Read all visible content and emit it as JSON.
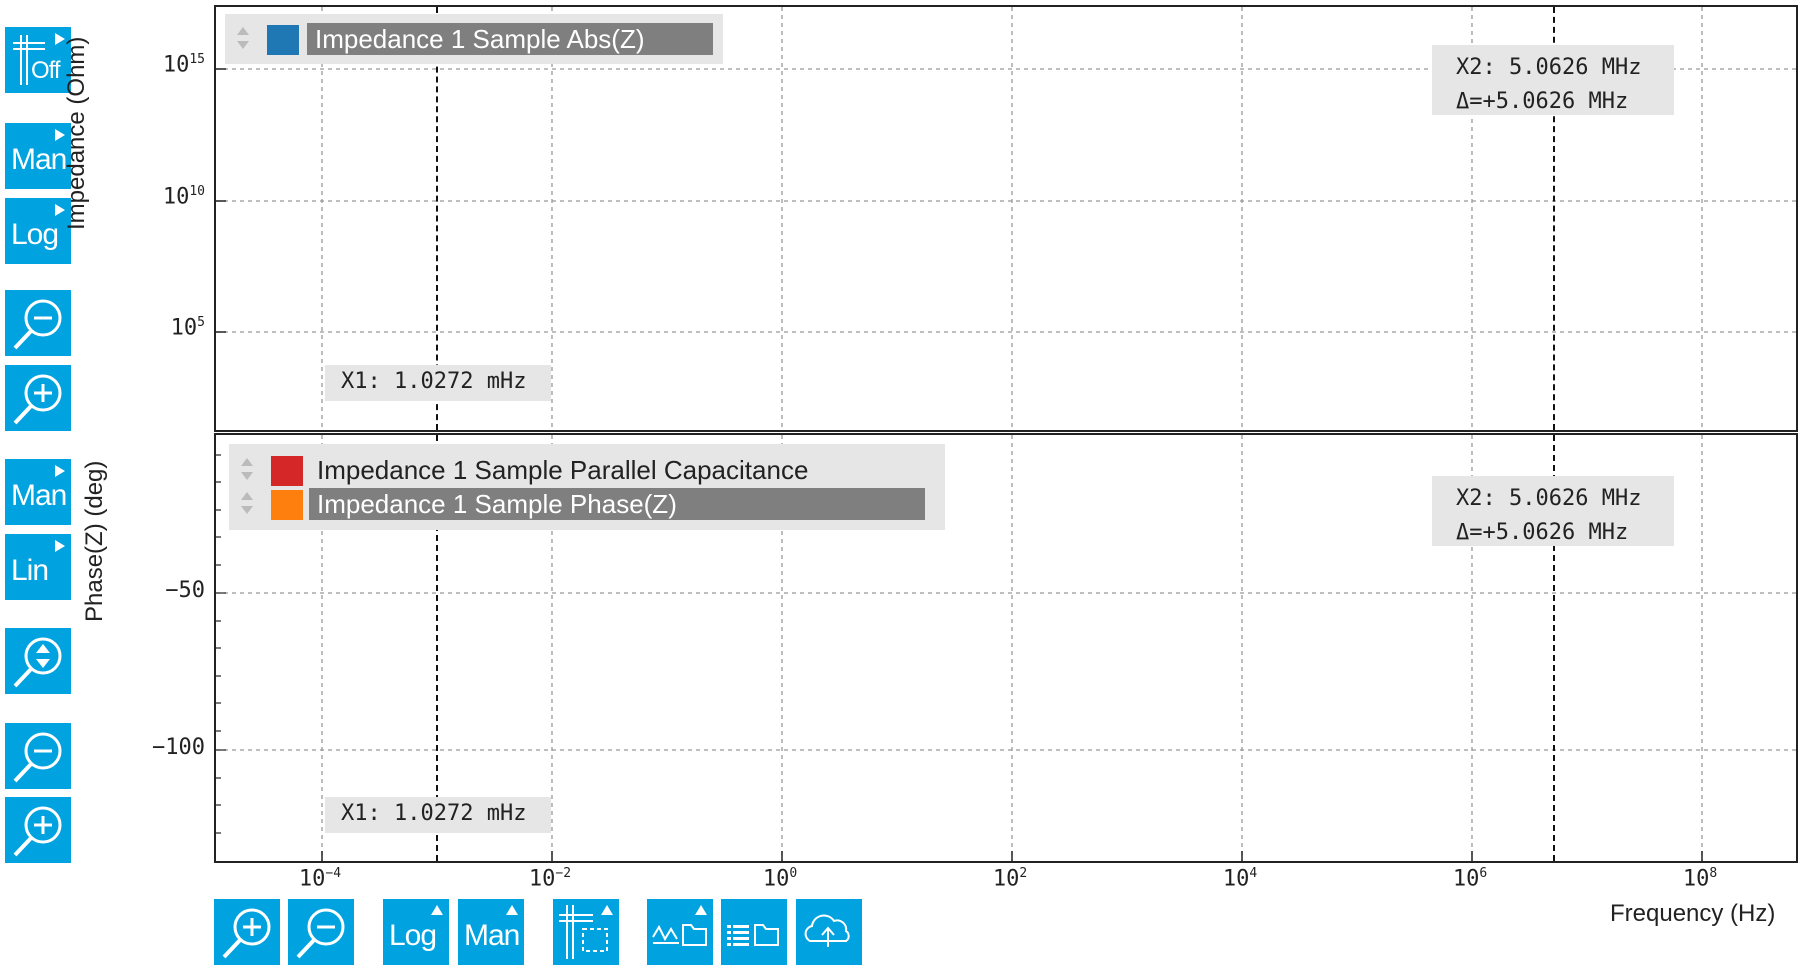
{
  "left_toolbar": {
    "top": [
      {
        "name": "cursor-off-button",
        "label": "Off",
        "kind": "cursor"
      },
      {
        "name": "y-range-mode-button",
        "label": "Man"
      },
      {
        "name": "y-scale-button",
        "label": "Log"
      },
      {
        "name": "zoom-out-button",
        "icon": "zoom-out-icon"
      },
      {
        "name": "zoom-in-button",
        "icon": "zoom-in-icon"
      }
    ],
    "bottom": [
      {
        "name": "y-range-mode-button-2",
        "label": "Man"
      },
      {
        "name": "y-scale-button-2",
        "label": "Lin"
      },
      {
        "name": "zoom-fit-button",
        "icon": "zoom-fit-icon"
      },
      {
        "name": "zoom-out-button-2",
        "icon": "zoom-out-icon"
      },
      {
        "name": "zoom-in-button-2",
        "icon": "zoom-in-icon"
      }
    ]
  },
  "bottom_toolbar": {
    "items": [
      {
        "name": "x-zoom-in-button",
        "icon": "zoom-in-icon"
      },
      {
        "name": "x-zoom-out-button",
        "icon": "zoom-out-icon"
      },
      {
        "name": "x-scale-button",
        "label": "Log"
      },
      {
        "name": "x-range-mode-button",
        "label": "Man"
      },
      {
        "name": "cursor-settings-button",
        "icon": "cursor-grid-icon"
      },
      {
        "name": "save-plot-button",
        "icon": "save-plot-icon"
      },
      {
        "name": "save-table-button",
        "icon": "save-table-icon"
      },
      {
        "name": "upload-cloud-button",
        "icon": "cloud-upload-icon"
      }
    ]
  },
  "plot_top": {
    "ylabel": "Impedance (Ohm)",
    "yticks": [
      {
        "base": "10",
        "exp": "15"
      },
      {
        "base": "10",
        "exp": "10"
      },
      {
        "base": "10",
        "exp": "5"
      }
    ],
    "legend": [
      {
        "name": "Impedance 1 Sample Abs(Z)",
        "color": "#1f77b4",
        "selected": true
      }
    ],
    "cursor_x1": {
      "label": "X1:",
      "value": "1.0272",
      "unit": "mHz"
    },
    "cursor_x2": {
      "label": "X2:",
      "value": "5.0626",
      "unit": "MHz",
      "delta_label": "Δ=",
      "delta_value": "+5.0626",
      "delta_unit": "MHz"
    }
  },
  "plot_bottom": {
    "ylabel": "Phase(Z) (deg)",
    "yticks": [
      "−50",
      "−100"
    ],
    "legend": [
      {
        "name": "Impedance 1 Sample Parallel Capacitance",
        "color": "#d62728",
        "selected": false
      },
      {
        "name": "Impedance 1 Sample Phase(Z)",
        "color": "#ff7f0e",
        "selected": true
      }
    ],
    "cursor_x1": {
      "label": "X1:",
      "value": "1.0272",
      "unit": "mHz"
    },
    "cursor_x2": {
      "label": "X2:",
      "value": "5.0626",
      "unit": "MHz",
      "delta_label": "Δ=",
      "delta_value": "+5.0626",
      "delta_unit": "MHz"
    }
  },
  "x_axis": {
    "label": "Frequency (Hz)",
    "ticks": [
      {
        "base": "10",
        "exp": "−4"
      },
      {
        "base": "10",
        "exp": "−2"
      },
      {
        "base": "10",
        "exp": "0"
      },
      {
        "base": "10",
        "exp": "2"
      },
      {
        "base": "10",
        "exp": "4"
      },
      {
        "base": "10",
        "exp": "6"
      },
      {
        "base": "10",
        "exp": "8"
      }
    ]
  },
  "colors": {
    "accent": "#00a3e0",
    "legend_bg": "#e6e6e6",
    "selected_bg": "#7f7f7f"
  }
}
